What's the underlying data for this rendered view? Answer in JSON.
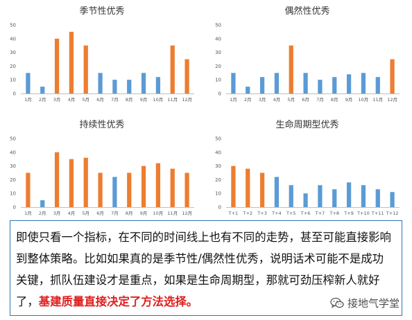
{
  "colors": {
    "blue": "#5b9bd5",
    "orange": "#ed7d31"
  },
  "chart_data": [
    {
      "type": "bar",
      "title": "季节性优秀",
      "categories": [
        "1月",
        "2月",
        "3月",
        "4月",
        "5月",
        "6月",
        "7月",
        "8月",
        "9月",
        "10月",
        "11月",
        "12月"
      ],
      "values": [
        15,
        5,
        40,
        45,
        35,
        15,
        10,
        10,
        15,
        12,
        35,
        25
      ],
      "highlight": [
        false,
        false,
        true,
        true,
        true,
        false,
        false,
        false,
        false,
        false,
        true,
        true
      ],
      "ylim": [
        0,
        50
      ],
      "yticks": [
        0,
        10,
        20,
        30,
        40,
        50
      ]
    },
    {
      "type": "bar",
      "title": "偶然性优秀",
      "categories": [
        "1月",
        "2月",
        "3月",
        "4月",
        "5月",
        "6月",
        "7月",
        "8月",
        "9月",
        "10月",
        "11月",
        "12月"
      ],
      "values": [
        15,
        5,
        12,
        15,
        35,
        15,
        10,
        12,
        14,
        15,
        12,
        25
      ],
      "highlight": [
        false,
        false,
        false,
        false,
        true,
        false,
        false,
        false,
        false,
        false,
        false,
        true
      ],
      "ylim": [
        0,
        50
      ],
      "yticks": [
        0,
        10,
        20,
        30,
        40,
        50
      ]
    },
    {
      "type": "bar",
      "title": "持续性优秀",
      "categories": [
        "1月",
        "2月",
        "3月",
        "4月",
        "5月",
        "6月",
        "7月",
        "8月",
        "9月",
        "10月",
        "11月",
        "12月"
      ],
      "values": [
        25,
        5,
        40,
        35,
        36,
        25,
        22,
        25,
        30,
        32,
        28,
        25
      ],
      "highlight": [
        true,
        false,
        true,
        true,
        true,
        true,
        false,
        true,
        true,
        true,
        true,
        true
      ],
      "ylim": [
        0,
        50
      ],
      "yticks": [
        0,
        10,
        20,
        30,
        40,
        50
      ]
    },
    {
      "type": "bar",
      "title": "生命周期型优秀",
      "categories": [
        "T+1",
        "T+2",
        "T+3",
        "T+4",
        "T+5",
        "T+6",
        "T+7",
        "T+8",
        "T+9",
        "T+10",
        "T+11",
        "T+12"
      ],
      "values": [
        30,
        28,
        25,
        22,
        16,
        10,
        16,
        13,
        18,
        16,
        13,
        11
      ],
      "highlight": [
        true,
        true,
        true,
        false,
        false,
        false,
        false,
        false,
        false,
        false,
        false,
        false
      ],
      "ylim": [
        0,
        50
      ],
      "yticks": [
        0,
        10,
        20,
        30,
        40,
        50
      ]
    }
  ],
  "caption": {
    "text": "即使只看一个指标，在不同的时间线上也有不同的走势，甚至可能直接影响到整体策略。比如如果真的是季节性/偶然性优秀，说明话术可能不是成功关键，抓队伍建设才是重点，如果是生命周期型，那就可劲压榨新人就好了，",
    "highlight": "基建质量直接决定了方法选择。"
  },
  "watermark": {
    "text": "接地气学堂",
    "icon": "wechat-icon"
  }
}
